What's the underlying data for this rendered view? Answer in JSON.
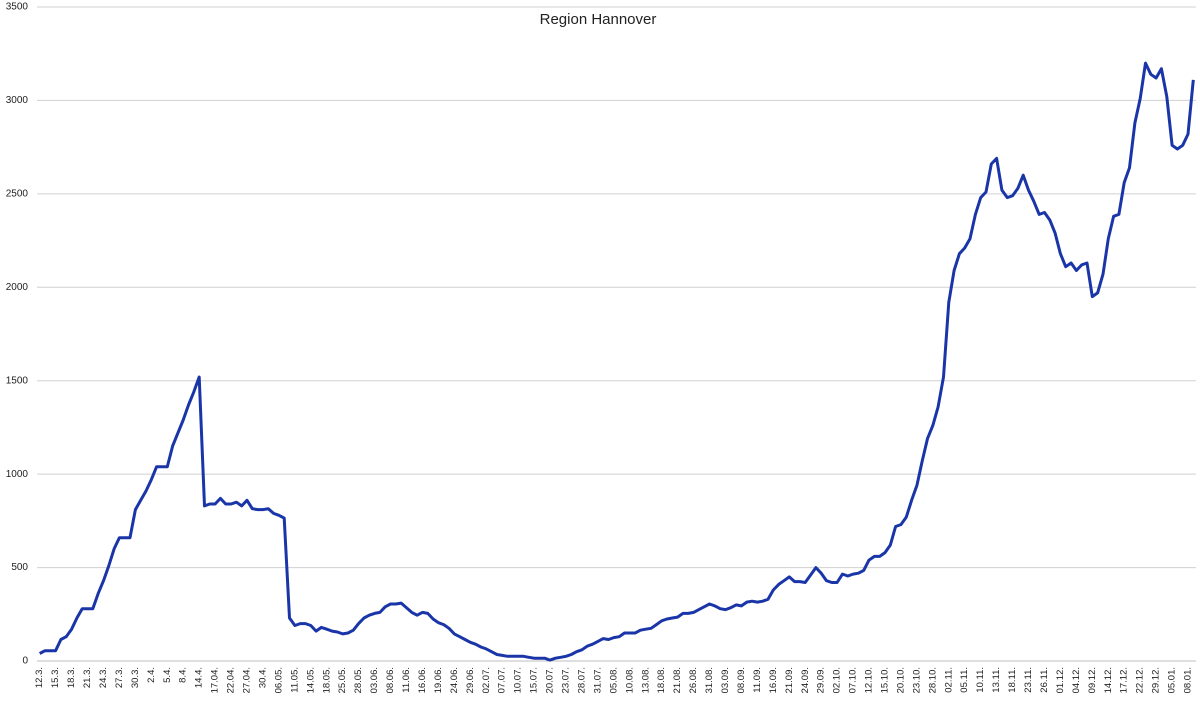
{
  "chart_data": {
    "type": "line",
    "title": "Region Hannover",
    "categories": [
      "12.3.",
      null,
      null,
      "15.3.",
      null,
      null,
      "18.3.",
      null,
      null,
      "21.3.",
      null,
      null,
      "24.3.",
      null,
      null,
      "27.3.",
      null,
      null,
      "30.3.",
      null,
      null,
      "2.4.",
      null,
      null,
      "5.4.",
      null,
      null,
      "8.4.",
      null,
      null,
      "14.4.",
      null,
      null,
      "17.04.",
      null,
      null,
      "22.04.",
      null,
      null,
      "27.04.",
      null,
      null,
      "30.4.",
      null,
      null,
      "06.05.",
      null,
      null,
      "11.05.",
      null,
      null,
      "14.05.",
      null,
      null,
      "18.05.",
      null,
      null,
      "25.05.",
      null,
      null,
      "28.05.",
      null,
      null,
      "03.06.",
      null,
      null,
      "08.06.",
      null,
      null,
      "11.06.",
      null,
      null,
      "16.06.",
      null,
      null,
      "19.06.",
      null,
      null,
      "24.06.",
      null,
      null,
      "29.06.",
      null,
      null,
      "02.07.",
      null,
      null,
      "07.07.",
      null,
      null,
      "10.07.",
      null,
      null,
      "15.07.",
      null,
      null,
      "20.07.",
      null,
      null,
      "23.07.",
      null,
      null,
      "28.07.",
      null,
      null,
      "31.07.",
      null,
      null,
      "05.08.",
      null,
      null,
      "10.08.",
      null,
      null,
      "13.08.",
      null,
      null,
      "18.08.",
      null,
      null,
      "21.08.",
      null,
      null,
      "26.08.",
      null,
      null,
      "31.08.",
      null,
      null,
      "03.09.",
      null,
      null,
      "08.09.",
      null,
      null,
      "11.09.",
      null,
      null,
      "16.09.",
      null,
      null,
      "21.09.",
      null,
      null,
      "24.09.",
      null,
      null,
      "29.09.",
      null,
      null,
      "02.10.",
      null,
      null,
      "07.10.",
      null,
      null,
      "12.10.",
      null,
      null,
      "15.10.",
      null,
      null,
      "20.10.",
      null,
      null,
      "23.10.",
      null,
      null,
      "28.10.",
      null,
      null,
      "02.11.",
      null,
      null,
      "05.11.",
      null,
      null,
      "10.11.",
      null,
      null,
      "13.11.",
      null,
      null,
      "18.11.",
      null,
      null,
      "23.11.",
      null,
      null,
      "26.11.",
      null,
      null,
      "01.12.",
      null,
      null,
      "04.12.",
      null,
      null,
      "09.12.",
      null,
      null,
      "14.12.",
      null,
      null,
      "17.12.",
      null,
      null,
      "22.12.",
      null,
      null,
      "29.12.",
      null,
      null,
      "05.01.",
      null,
      null,
      "08.01.",
      null
    ],
    "values": [
      40,
      55,
      55,
      55,
      115,
      130,
      170,
      230,
      280,
      280,
      280,
      360,
      430,
      510,
      600,
      660,
      660,
      660,
      810,
      860,
      910,
      970,
      1040,
      1040,
      1040,
      1150,
      1220,
      1290,
      1370,
      1440,
      1520,
      830,
      840,
      840,
      870,
      840,
      840,
      850,
      830,
      860,
      815,
      810,
      810,
      815,
      790,
      780,
      765,
      230,
      190,
      200,
      200,
      190,
      160,
      180,
      170,
      160,
      155,
      145,
      150,
      165,
      200,
      230,
      245,
      255,
      260,
      290,
      305,
      305,
      310,
      285,
      260,
      245,
      260,
      255,
      225,
      205,
      195,
      175,
      145,
      130,
      115,
      100,
      90,
      75,
      65,
      50,
      35,
      30,
      25,
      25,
      25,
      25,
      20,
      15,
      15,
      15,
      5,
      15,
      20,
      25,
      35,
      50,
      60,
      80,
      90,
      105,
      120,
      115,
      125,
      130,
      150,
      150,
      150,
      165,
      170,
      175,
      195,
      215,
      225,
      230,
      235,
      255,
      255,
      260,
      275,
      290,
      305,
      295,
      280,
      275,
      285,
      300,
      295,
      315,
      320,
      315,
      320,
      330,
      380,
      410,
      430,
      450,
      425,
      425,
      420,
      460,
      500,
      470,
      430,
      420,
      420,
      465,
      455,
      465,
      470,
      485,
      540,
      560,
      560,
      580,
      620,
      720,
      730,
      770,
      860,
      940,
      1070,
      1190,
      1260,
      1360,
      1520,
      1920,
      2090,
      2180,
      2210,
      2260,
      2390,
      2480,
      2510,
      2660,
      2690,
      2520,
      2480,
      2490,
      2530,
      2600,
      2520,
      2460,
      2390,
      2400,
      2360,
      2290,
      2180,
      2110,
      2130,
      2090,
      2120,
      2130,
      1950,
      1970,
      2070,
      2260,
      2380,
      2390,
      2560,
      2640,
      2880,
      3010,
      3200,
      3140,
      3120,
      3170,
      3020,
      2760,
      2740,
      2760,
      2820,
      3110
    ],
    "color": "#1a35a8",
    "ylim": [
      0,
      3500
    ],
    "yticks": [
      0,
      500,
      1000,
      1500,
      2000,
      2500,
      3000,
      3500
    ],
    "grid": true
  }
}
